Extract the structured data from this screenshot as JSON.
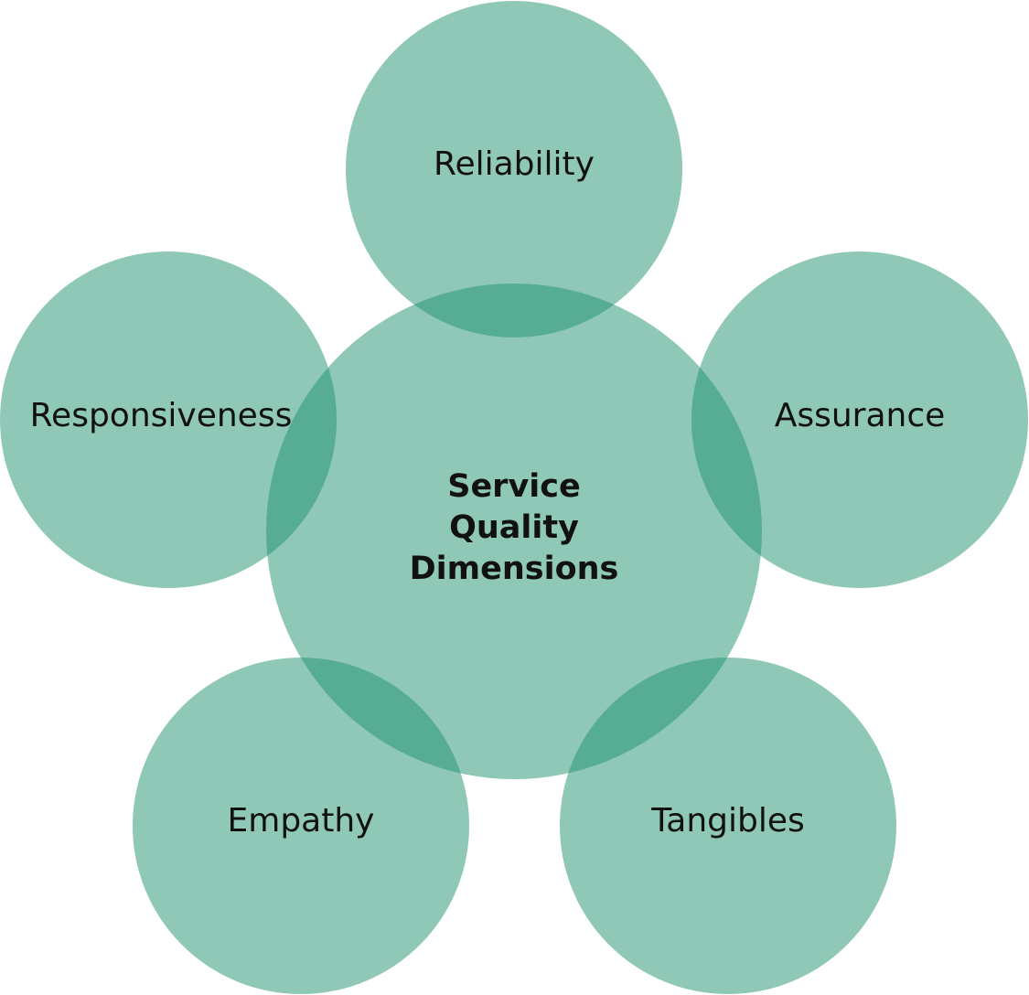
{
  "diagram": {
    "center": {
      "label_lines": [
        "Service",
        "Quality",
        "Dimensions"
      ]
    },
    "dimensions": [
      {
        "id": "reliability",
        "label": "Reliability"
      },
      {
        "id": "assurance",
        "label": "Assurance"
      },
      {
        "id": "tangibles",
        "label": "Tangibles"
      },
      {
        "id": "empathy",
        "label": "Empathy"
      },
      {
        "id": "responsiveness",
        "label": "Responsiveness"
      }
    ],
    "colors": {
      "circle_fill": "#1f9270",
      "text": "#111111",
      "background": "#ffffff"
    }
  }
}
